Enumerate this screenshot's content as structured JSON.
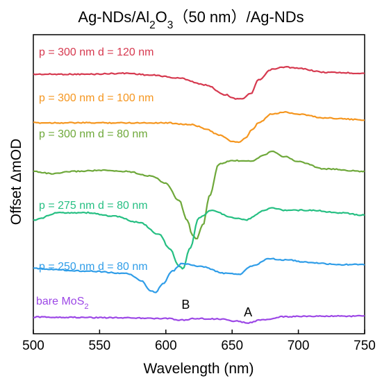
{
  "chart_data": {
    "type": "line",
    "title": {
      "parts": [
        {
          "t": "Ag-NDs/Al",
          "sub": false
        },
        {
          "t": "2",
          "sub": true
        },
        {
          "t": "O",
          "sub": false
        },
        {
          "t": "3",
          "sub": true
        },
        {
          "t": "（50 nm）/Ag-NDs",
          "sub": false
        }
      ]
    },
    "xlabel": "Wavelength (nm)",
    "ylabel": "Offset ΔmOD",
    "xlim": [
      500,
      750
    ],
    "xticks": [
      500,
      550,
      600,
      650,
      700,
      750
    ],
    "yticks_shown": false,
    "grid": false,
    "annotations": [
      {
        "text": "B",
        "x": 615
      },
      {
        "text": "A",
        "x": 662
      }
    ],
    "series": [
      {
        "name": "p = 300 nm d = 120 nm",
        "label_parts": [
          {
            "t": "p = 300 nm d = 120 nm",
            "sub": false
          }
        ],
        "color": "#d6394f",
        "offset": 5.0,
        "points": [
          [
            500,
            0.0
          ],
          [
            540,
            0.0
          ],
          [
            570,
            0.02
          ],
          [
            590,
            -0.02
          ],
          [
            610,
            -0.08
          ],
          [
            630,
            -0.22
          ],
          [
            645,
            -0.42
          ],
          [
            652,
            -0.5
          ],
          [
            658,
            -0.5
          ],
          [
            664,
            -0.4
          ],
          [
            670,
            -0.12
          ],
          [
            680,
            0.1
          ],
          [
            690,
            0.15
          ],
          [
            700,
            0.12
          ],
          [
            720,
            0.04
          ],
          [
            750,
            0.02
          ]
        ]
      },
      {
        "name": "p = 300 nm d = 100 nm",
        "label_parts": [
          {
            "t": "p = 300 nm d = 100 nm",
            "sub": false
          }
        ],
        "color": "#f5961f",
        "offset": 4.0,
        "points": [
          [
            500,
            0.0
          ],
          [
            550,
            0.0
          ],
          [
            600,
            0.0
          ],
          [
            620,
            -0.04
          ],
          [
            630,
            -0.12
          ],
          [
            640,
            -0.25
          ],
          [
            650,
            -0.38
          ],
          [
            655,
            -0.4
          ],
          [
            660,
            -0.32
          ],
          [
            665,
            -0.15
          ],
          [
            670,
            0.0
          ],
          [
            680,
            0.18
          ],
          [
            690,
            0.22
          ],
          [
            700,
            0.18
          ],
          [
            720,
            0.1
          ],
          [
            750,
            0.06
          ]
        ]
      },
      {
        "name": "p = 300 nm d = 80 nm",
        "label_parts": [
          {
            "t": "p = 300 nm d = 80 nm",
            "sub": false
          }
        ],
        "color": "#6ea83a",
        "offset": 3.0,
        "points": [
          [
            500,
            0.0
          ],
          [
            515,
            -0.05
          ],
          [
            530,
            0.0
          ],
          [
            550,
            0.02
          ],
          [
            570,
            0.0
          ],
          [
            590,
            -0.1
          ],
          [
            600,
            -0.25
          ],
          [
            610,
            -0.6
          ],
          [
            616,
            -1.0
          ],
          [
            620,
            -1.3
          ],
          [
            623,
            -1.4
          ],
          [
            628,
            -1.1
          ],
          [
            633,
            -0.5
          ],
          [
            640,
            0.15
          ],
          [
            650,
            0.22
          ],
          [
            665,
            0.22
          ],
          [
            675,
            0.35
          ],
          [
            680,
            0.42
          ],
          [
            690,
            0.3
          ],
          [
            700,
            0.2
          ],
          [
            720,
            0.05
          ],
          [
            750,
            0.0
          ]
        ]
      },
      {
        "name": "p = 275 nm d = 80 nm",
        "label_parts": [
          {
            "t": "p = 275 nm d = 80 nm",
            "sub": false
          }
        ],
        "color": "#25bf82",
        "offset": 2.0,
        "points": [
          [
            500,
            0.0
          ],
          [
            520,
            0.15
          ],
          [
            540,
            0.15
          ],
          [
            560,
            0.08
          ],
          [
            580,
            -0.05
          ],
          [
            595,
            -0.3
          ],
          [
            603,
            -0.6
          ],
          [
            610,
            -0.95
          ],
          [
            613,
            -1.0
          ],
          [
            618,
            -0.6
          ],
          [
            625,
            0.05
          ],
          [
            635,
            0.2
          ],
          [
            650,
            0.05
          ],
          [
            660,
            0.0
          ],
          [
            675,
            0.2
          ],
          [
            680,
            0.25
          ],
          [
            690,
            0.2
          ],
          [
            710,
            0.2
          ],
          [
            730,
            0.15
          ],
          [
            750,
            0.1
          ]
        ]
      },
      {
        "name": "p = 250 nm d = 80 nm",
        "label_parts": [
          {
            "t": "p = 250 nm d = 80 nm",
            "sub": false
          }
        ],
        "color": "#2f9de8",
        "offset": 1.0,
        "points": [
          [
            500,
            0.0
          ],
          [
            540,
            -0.05
          ],
          [
            570,
            -0.1
          ],
          [
            582,
            -0.25
          ],
          [
            588,
            -0.45
          ],
          [
            592,
            -0.5
          ],
          [
            598,
            -0.3
          ],
          [
            605,
            -0.05
          ],
          [
            612,
            0.1
          ],
          [
            625,
            0.05
          ],
          [
            645,
            -0.1
          ],
          [
            655,
            -0.12
          ],
          [
            665,
            0.05
          ],
          [
            678,
            0.2
          ],
          [
            690,
            0.18
          ],
          [
            710,
            0.12
          ],
          [
            730,
            0.08
          ],
          [
            750,
            0.08
          ]
        ]
      },
      {
        "name": "bare MoS2",
        "label_parts": [
          {
            "t": "bare MoS",
            "sub": false
          },
          {
            "t": "2",
            "sub": true
          }
        ],
        "color": "#9c47e6",
        "offset": 0.0,
        "points": [
          [
            500,
            0.0
          ],
          [
            560,
            -0.01
          ],
          [
            600,
            -0.03
          ],
          [
            612,
            -0.06
          ],
          [
            622,
            -0.03
          ],
          [
            640,
            -0.04
          ],
          [
            652,
            -0.08
          ],
          [
            662,
            -0.12
          ],
          [
            672,
            -0.06
          ],
          [
            690,
            0.01
          ],
          [
            720,
            0.02
          ],
          [
            750,
            0.02
          ]
        ]
      }
    ]
  }
}
